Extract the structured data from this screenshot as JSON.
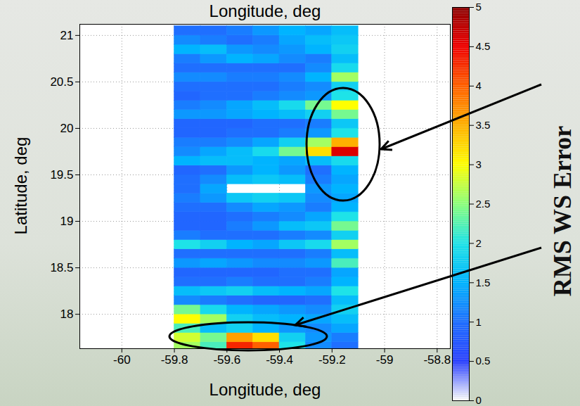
{
  "chart_data": {
    "type": "heatmap",
    "x_label": "Longitude, deg",
    "x_label_top": "Longitude, deg",
    "y_label": "Latitude, deg",
    "xlim": [
      -60.16,
      -58.75
    ],
    "xticks": [
      -60,
      -59.8,
      -59.6,
      -59.4,
      -59.2,
      -59,
      -58.8
    ],
    "ylim": [
      17.63,
      21.12
    ],
    "yticks": [
      18,
      18.5,
      19,
      19.5,
      20,
      20.5,
      21
    ],
    "grid": true,
    "lon_bins": [
      -59.8,
      -59.7,
      -59.6,
      -59.5,
      -59.4,
      -59.3,
      -59.2,
      -59.1
    ],
    "lat_bins": [
      17.6,
      17.7,
      17.8,
      17.9,
      18.0,
      18.1,
      18.2,
      18.3,
      18.4,
      18.5,
      18.6,
      18.7,
      18.8,
      18.9,
      19.0,
      19.1,
      19.2,
      19.3,
      19.4,
      19.5,
      19.6,
      19.7,
      19.8,
      19.9,
      20.0,
      20.1,
      20.2,
      20.3,
      20.4,
      20.5,
      20.6,
      20.7,
      20.8,
      20.9,
      21.0,
      21.1
    ],
    "values": [
      [
        2.6,
        2.2,
        4.3,
        4.0,
        2.0,
        1.2,
        1.0
      ],
      [
        2.8,
        2.4,
        3.6,
        3.2,
        1.8,
        1.3,
        1.1
      ],
      [
        2.2,
        1.6,
        1.8,
        1.5,
        1.3,
        1.2,
        1.4
      ],
      [
        3.0,
        2.6,
        1.8,
        1.6,
        1.5,
        1.4,
        1.6
      ],
      [
        2.4,
        1.9,
        1.5,
        1.4,
        1.3,
        1.2,
        1.8
      ],
      [
        1.2,
        1.1,
        1.0,
        0.9,
        0.9,
        1.0,
        1.6
      ],
      [
        1.6,
        1.7,
        1.8,
        1.6,
        1.5,
        1.4,
        2.0
      ],
      [
        1.0,
        1.0,
        1.1,
        1.0,
        1.0,
        1.1,
        1.5
      ],
      [
        0.9,
        0.9,
        0.9,
        0.9,
        1.0,
        1.0,
        1.4
      ],
      [
        1.3,
        1.4,
        1.3,
        1.2,
        1.2,
        1.3,
        2.2
      ],
      [
        1.0,
        1.0,
        1.0,
        1.0,
        1.0,
        1.1,
        1.6
      ],
      [
        2.0,
        1.8,
        1.5,
        1.4,
        1.7,
        1.9,
        2.6
      ],
      [
        1.1,
        1.0,
        1.0,
        1.0,
        1.1,
        1.2,
        1.8
      ],
      [
        0.9,
        0.9,
        1.1,
        1.3,
        1.6,
        1.7,
        2.4
      ],
      [
        0.9,
        0.9,
        1.0,
        1.1,
        1.2,
        1.4,
        2.0
      ],
      [
        1.0,
        1.0,
        1.2,
        1.4,
        1.3,
        1.1,
        1.5
      ],
      [
        1.1,
        1.3,
        1.7,
        1.8,
        1.7,
        1.2,
        1.4
      ],
      [
        1.0,
        1.4,
        null,
        null,
        null,
        1.3,
        1.5
      ],
      [
        1.0,
        1.2,
        1.6,
        1.7,
        1.6,
        1.1,
        1.4
      ],
      [
        0.9,
        1.0,
        1.3,
        1.5,
        1.3,
        1.0,
        1.5
      ],
      [
        1.5,
        1.6,
        1.6,
        1.5,
        1.4,
        1.6,
        1.9
      ],
      [
        1.2,
        1.4,
        1.6,
        1.9,
        2.4,
        3.2,
        4.6
      ],
      [
        1.1,
        1.1,
        1.2,
        1.4,
        1.8,
        2.6,
        3.5
      ],
      [
        0.9,
        0.9,
        1.0,
        1.0,
        1.1,
        1.3,
        2.0
      ],
      [
        0.9,
        0.9,
        0.9,
        1.0,
        1.0,
        1.1,
        1.7
      ],
      [
        1.3,
        1.3,
        1.4,
        1.5,
        1.6,
        1.8,
        2.4
      ],
      [
        1.1,
        1.2,
        1.4,
        1.6,
        1.9,
        2.4,
        3.0
      ],
      [
        0.9,
        1.0,
        1.0,
        1.1,
        1.2,
        1.3,
        2.0
      ],
      [
        1.0,
        1.0,
        1.0,
        1.0,
        1.1,
        1.2,
        1.8
      ],
      [
        1.2,
        1.2,
        1.1,
        1.1,
        1.2,
        1.5,
        2.6
      ],
      [
        1.0,
        1.0,
        1.0,
        1.0,
        1.0,
        1.2,
        1.9
      ],
      [
        1.1,
        1.3,
        1.5,
        1.4,
        1.2,
        1.1,
        1.6
      ],
      [
        1.5,
        1.6,
        1.3,
        1.2,
        1.3,
        1.5,
        1.8
      ],
      [
        1.2,
        1.1,
        1.0,
        1.1,
        1.4,
        1.6,
        1.7
      ],
      [
        1.0,
        1.0,
        1.1,
        1.3,
        1.5,
        1.4,
        1.6
      ]
    ],
    "colorbar": {
      "lim": [
        0,
        5
      ],
      "ticks": [
        0,
        0.5,
        1,
        1.5,
        2,
        2.5,
        3,
        3.5,
        4,
        4.5,
        5
      ],
      "label": "RMS WS Error"
    }
  }
}
